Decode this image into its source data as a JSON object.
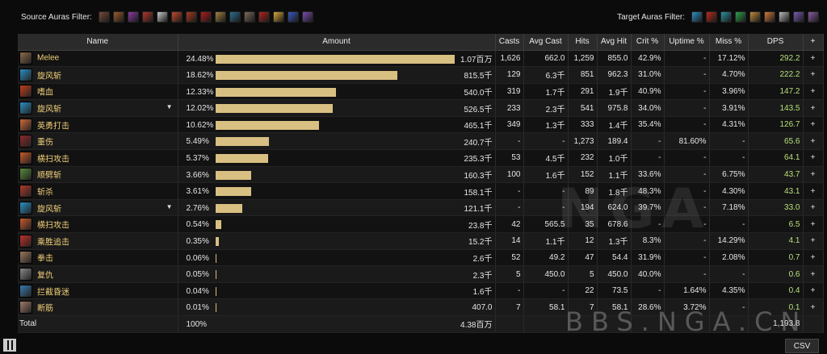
{
  "source_filter": {
    "label": "Source Auras Filter:",
    "icons": [
      {
        "name": "claw-aura-icon",
        "color": "#7a4a3a"
      },
      {
        "name": "mask-aura-icon",
        "color": "#9b5a2b"
      },
      {
        "name": "demon-aura-icon",
        "color": "#8a3aa0"
      },
      {
        "name": "dragon-aura-icon",
        "color": "#b3342c"
      },
      {
        "name": "flag-aura-icon",
        "color": "#c9c9c9"
      },
      {
        "name": "fist-aura-icon",
        "color": "#c24a2a"
      },
      {
        "name": "book-aura-icon",
        "color": "#a43a1e"
      },
      {
        "name": "slash-aura-icon",
        "color": "#b01a1a"
      },
      {
        "name": "rune-aura-icon",
        "color": "#a08040"
      },
      {
        "name": "totem-aura-icon",
        "color": "#2b6f8f"
      },
      {
        "name": "axe-aura-icon",
        "color": "#7a6a5a"
      },
      {
        "name": "blood-aura-icon",
        "color": "#b0241c"
      },
      {
        "name": "bell-aura-icon",
        "color": "#d8a53a"
      },
      {
        "name": "orb-aura-icon",
        "color": "#3a58c0"
      },
      {
        "name": "spirit-aura-icon",
        "color": "#7a4ab0"
      }
    ]
  },
  "target_filter": {
    "label": "Target Auras Filter:",
    "icons": [
      {
        "name": "vortex-aura-icon",
        "color": "#2c8fc4"
      },
      {
        "name": "rage-aura-icon",
        "color": "#b82a1a"
      },
      {
        "name": "whirl-aura-icon",
        "color": "#2a8fa0"
      },
      {
        "name": "poison-aura-icon",
        "color": "#2aa04a"
      },
      {
        "name": "strike-aura-icon",
        "color": "#c08a3a"
      },
      {
        "name": "burn-aura-icon",
        "color": "#d0783a"
      },
      {
        "name": "shield-aura-icon",
        "color": "#b8b8b8"
      },
      {
        "name": "void-aura-icon",
        "color": "#7a5ab0"
      },
      {
        "name": "cleave-aura-icon",
        "color": "#8a5aa0"
      }
    ]
  },
  "table": {
    "headers": {
      "name": "Name",
      "amount": "Amount",
      "casts": "Casts",
      "avg_cast": "Avg Cast",
      "hits": "Hits",
      "avg_hit": "Avg Hit",
      "crit": "Crit %",
      "uptime": "Uptime %",
      "miss": "Miss %",
      "dps": "DPS",
      "plus": "+"
    },
    "rows": [
      {
        "name": "Melee",
        "icon": "melee-icon",
        "icon_color": "#8a6a4a",
        "caret": false,
        "pct": "24.48%",
        "fill": 24.48,
        "amount": "1.07百万",
        "casts": "1,626",
        "avg_cast": "662.0",
        "hits": "1,259",
        "avg_hit": "855.0",
        "crit": "42.9%",
        "uptime": "-",
        "miss": "17.12%",
        "dps": "292.2"
      },
      {
        "name": "旋风斩",
        "icon": "whirlwind-icon",
        "icon_color": "#2c8fc4",
        "caret": false,
        "pct": "18.62%",
        "fill": 18.62,
        "amount": "815.5千",
        "casts": "129",
        "avg_cast": "6.3千",
        "hits": "851",
        "avg_hit": "962.3",
        "crit": "31.0%",
        "uptime": "-",
        "miss": "4.70%",
        "dps": "222.2"
      },
      {
        "name": "嗜血",
        "icon": "bloodthirst-icon",
        "icon_color": "#c0401a",
        "caret": false,
        "pct": "12.33%",
        "fill": 12.33,
        "amount": "540.0千",
        "casts": "319",
        "avg_cast": "1.7千",
        "hits": "291",
        "avg_hit": "1.9千",
        "crit": "40.9%",
        "uptime": "-",
        "miss": "3.96%",
        "dps": "147.2"
      },
      {
        "name": "旋风斩",
        "icon": "whirlwind-icon",
        "icon_color": "#2c8fc4",
        "caret": true,
        "pct": "12.02%",
        "fill": 12.02,
        "amount": "526.5千",
        "casts": "233",
        "avg_cast": "2.3千",
        "hits": "541",
        "avg_hit": "975.8",
        "crit": "34.0%",
        "uptime": "-",
        "miss": "3.91%",
        "dps": "143.5"
      },
      {
        "name": "英勇打击",
        "icon": "heroic-strike-icon",
        "icon_color": "#d06a3a",
        "caret": false,
        "pct": "10.62%",
        "fill": 10.62,
        "amount": "465.1千",
        "casts": "349",
        "avg_cast": "1.3千",
        "hits": "333",
        "avg_hit": "1.4千",
        "crit": "35.4%",
        "uptime": "-",
        "miss": "4.31%",
        "dps": "126.7"
      },
      {
        "name": "重伤",
        "icon": "deep-wounds-icon",
        "icon_color": "#8a2a2a",
        "caret": false,
        "pct": "5.49%",
        "fill": 5.49,
        "amount": "240.7千",
        "casts": "-",
        "avg_cast": "-",
        "hits": "1,273",
        "avg_hit": "189.4",
        "crit": "-",
        "uptime": "81.60%",
        "miss": "-",
        "dps": "65.6"
      },
      {
        "name": "横扫攻击",
        "icon": "sweeping-strikes-icon",
        "icon_color": "#c85a2a",
        "caret": false,
        "pct": "5.37%",
        "fill": 5.37,
        "amount": "235.3千",
        "casts": "53",
        "avg_cast": "4.5千",
        "hits": "232",
        "avg_hit": "1.0千",
        "crit": "-",
        "uptime": "-",
        "miss": "-",
        "dps": "64.1"
      },
      {
        "name": "顺劈斩",
        "icon": "cleave-icon",
        "icon_color": "#5a8a3a",
        "caret": false,
        "pct": "3.66%",
        "fill": 3.66,
        "amount": "160.3千",
        "casts": "100",
        "avg_cast": "1.6千",
        "hits": "152",
        "avg_hit": "1.1千",
        "crit": "33.6%",
        "uptime": "-",
        "miss": "6.75%",
        "dps": "43.7"
      },
      {
        "name": "斩杀",
        "icon": "execute-icon",
        "icon_color": "#b03a2a",
        "caret": false,
        "pct": "3.61%",
        "fill": 3.61,
        "amount": "158.1千",
        "casts": "-",
        "avg_cast": "-",
        "hits": "89",
        "avg_hit": "1.8千",
        "crit": "48.3%",
        "uptime": "-",
        "miss": "4.30%",
        "dps": "43.1"
      },
      {
        "name": "旋风斩",
        "icon": "whirlwind-icon",
        "icon_color": "#2c8fc4",
        "caret": true,
        "pct": "2.76%",
        "fill": 2.76,
        "amount": "121.1千",
        "casts": "-",
        "avg_cast": "-",
        "hits": "194",
        "avg_hit": "624.0",
        "crit": "39.7%",
        "uptime": "-",
        "miss": "7.18%",
        "dps": "33.0"
      },
      {
        "name": "横扫攻击",
        "icon": "sweeping-strikes-icon",
        "icon_color": "#c85a2a",
        "caret": false,
        "pct": "0.54%",
        "fill": 0.54,
        "amount": "23.8千",
        "casts": "42",
        "avg_cast": "565.5",
        "hits": "35",
        "avg_hit": "678.6",
        "crit": "-",
        "uptime": "-",
        "miss": "-",
        "dps": "6.5"
      },
      {
        "name": "乘胜追击",
        "icon": "victory-rush-icon",
        "icon_color": "#c0302a",
        "caret": false,
        "pct": "0.35%",
        "fill": 0.35,
        "amount": "15.2千",
        "casts": "14",
        "avg_cast": "1.1千",
        "hits": "12",
        "avg_hit": "1.3千",
        "crit": "8.3%",
        "uptime": "-",
        "miss": "14.29%",
        "dps": "4.1"
      },
      {
        "name": "拳击",
        "icon": "pummel-icon",
        "icon_color": "#9a7a5a",
        "caret": false,
        "pct": "0.06%",
        "fill": 0.06,
        "amount": "2.6千",
        "casts": "52",
        "avg_cast": "49.2",
        "hits": "47",
        "avg_hit": "54.4",
        "crit": "31.9%",
        "uptime": "-",
        "miss": "2.08%",
        "dps": "0.7"
      },
      {
        "name": "复仇",
        "icon": "revenge-icon",
        "icon_color": "#8a8a8a",
        "caret": false,
        "pct": "0.05%",
        "fill": 0.05,
        "amount": "2.3千",
        "casts": "5",
        "avg_cast": "450.0",
        "hits": "5",
        "avg_hit": "450.0",
        "crit": "40.0%",
        "uptime": "-",
        "miss": "-",
        "dps": "0.6"
      },
      {
        "name": "拦截昏迷",
        "icon": "intercept-stun-icon",
        "icon_color": "#3a7ab0",
        "caret": false,
        "pct": "0.04%",
        "fill": 0.04,
        "amount": "1.6千",
        "casts": "-",
        "avg_cast": "-",
        "hits": "22",
        "avg_hit": "73.5",
        "crit": "-",
        "uptime": "1.64%",
        "miss": "4.35%",
        "dps": "0.4"
      },
      {
        "name": "断筋",
        "icon": "hamstring-icon",
        "icon_color": "#a07a6a",
        "caret": false,
        "pct": "0.01%",
        "fill": 0.01,
        "amount": "407.0",
        "casts": "7",
        "avg_cast": "58.1",
        "hits": "7",
        "avg_hit": "58.1",
        "crit": "28.6%",
        "uptime": "3.72%",
        "miss": "-",
        "dps": "0.1"
      }
    ],
    "total": {
      "label": "Total",
      "pct": "100%",
      "amount": "4.38百万",
      "dps": "1,193.8"
    }
  },
  "watermark": {
    "logo": "NGA",
    "url": "BBS.NGA.CN"
  },
  "csv_label": "CSV",
  "colors": {
    "bar": "#d8bf82",
    "spell_name": "#f1d07a",
    "dps": "#b7e07a"
  }
}
